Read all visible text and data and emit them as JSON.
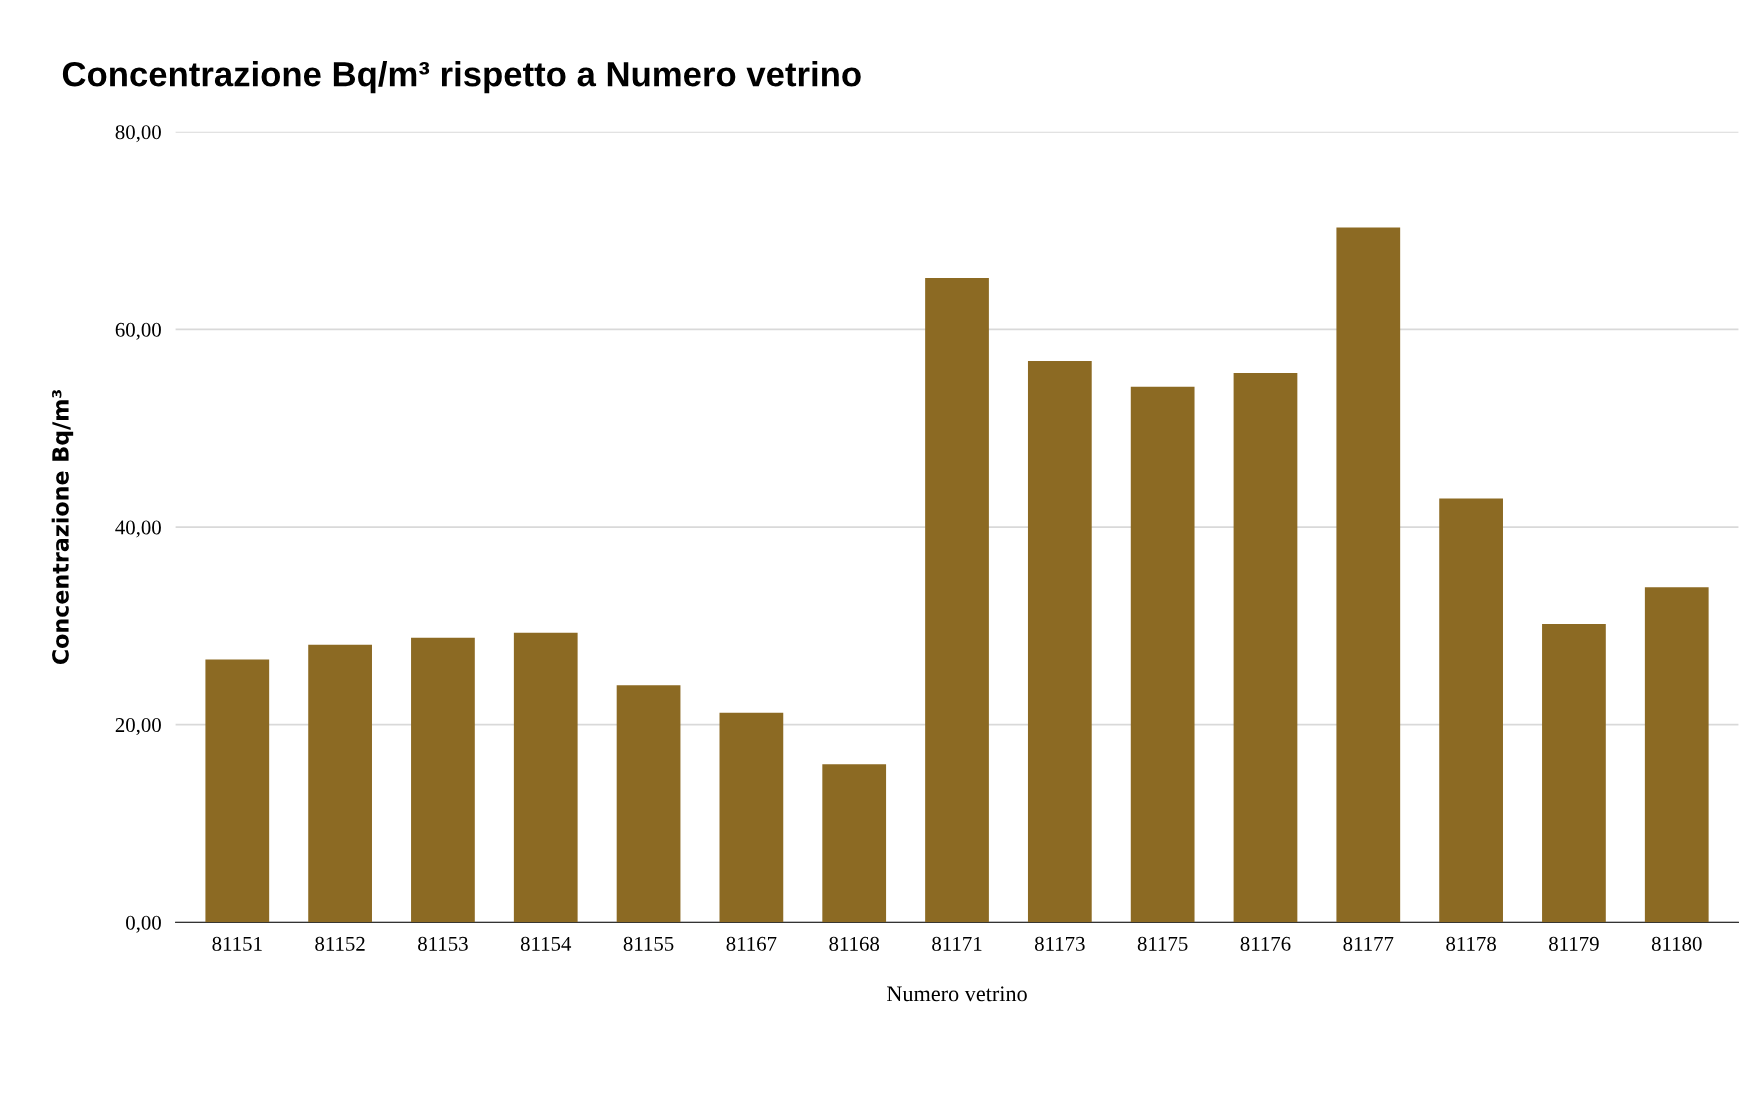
{
  "chart_data": {
    "type": "bar",
    "title": "Concentrazione Bq/m³ rispetto a Numero vetrino",
    "xlabel": "Numero vetrino",
    "ylabel": "Concentrazione Bq/m³",
    "categories": [
      "81151",
      "81152",
      "81153",
      "81154",
      "81155",
      "81167",
      "81168",
      "81171",
      "81173",
      "81175",
      "81176",
      "81177",
      "81178",
      "81179",
      "81180"
    ],
    "values": [
      26.6,
      28.1,
      28.8,
      29.3,
      24.0,
      21.2,
      16.0,
      65.2,
      56.8,
      54.2,
      55.6,
      70.3,
      42.9,
      30.2,
      33.9
    ],
    "color": "#8c6a23",
    "ylim": [
      0,
      80
    ],
    "yticks": [
      {
        "value": 0,
        "label": "0,00"
      },
      {
        "value": 20,
        "label": "20,00"
      },
      {
        "value": 40,
        "label": "40,00"
      },
      {
        "value": 60,
        "label": "60,00"
      },
      {
        "value": 80,
        "label": "80,00"
      }
    ],
    "grid": "y"
  }
}
